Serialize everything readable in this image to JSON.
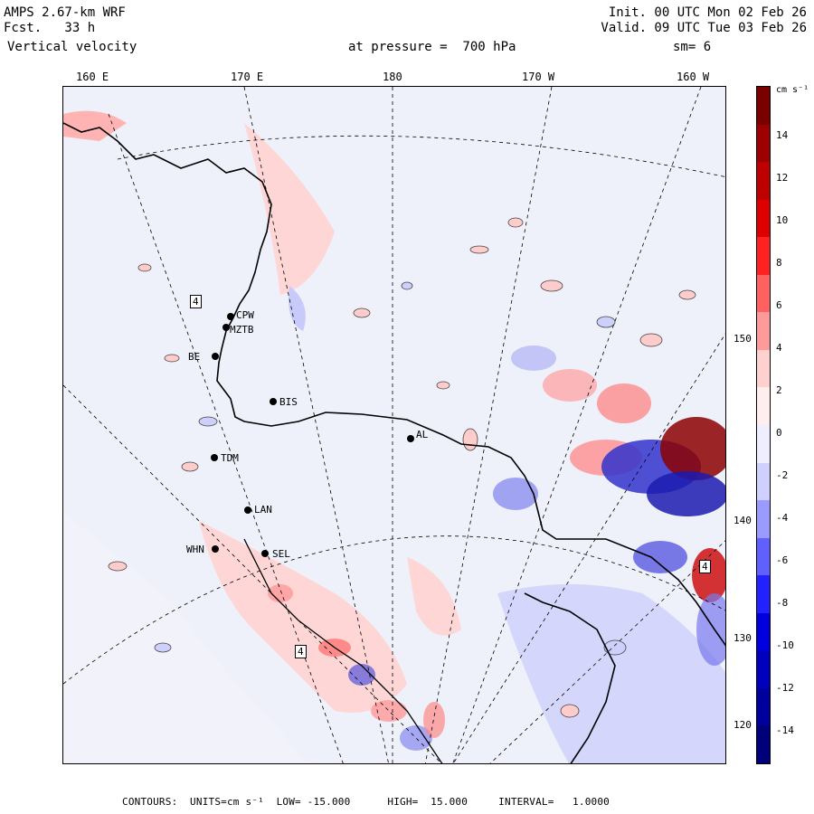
{
  "header": {
    "line1_left": "AMPS 2.67-km WRF",
    "line2_left": "Fcst.   33 h",
    "line3_left": "Vertical velocity",
    "line1_right": "Init. 00 UTC Mon 02 Feb 26",
    "line2_right": "Valid. 09 UTC Tue 03 Feb 26",
    "pressure": "at pressure =  700 hPa",
    "smoothing": "sm= 6"
  },
  "longitudes": [
    "160 E",
    "170 E",
    "180",
    "170 W",
    "160 W"
  ],
  "latitudes": [
    "150 W",
    "140 W",
    "130 W",
    "120 W"
  ],
  "stations": [
    {
      "code": "CPW"
    },
    {
      "code": "MZTB"
    },
    {
      "code": "BE"
    },
    {
      "code": "BIS"
    },
    {
      "code": "TDM"
    },
    {
      "code": "LAN"
    },
    {
      "code": "WHN"
    },
    {
      "code": "SEL"
    },
    {
      "code": "AL"
    }
  ],
  "markers": [
    {
      "text": "4"
    },
    {
      "text": "4"
    },
    {
      "text": "4"
    }
  ],
  "colorbar": {
    "units": "cm s⁻¹",
    "ticks": [
      "14",
      "12",
      "10",
      "8",
      "6",
      "4",
      "2",
      "0",
      "-2",
      "-4",
      "-6",
      "-8",
      "-10",
      "-12",
      "-14"
    ],
    "colors": [
      "#7a0000",
      "#9c0000",
      "#bd0000",
      "#de0000",
      "#ff2222",
      "#ff6060",
      "#ff9a9a",
      "#ffd0d0",
      "#ffeeee",
      "#eeeeff",
      "#d0d0ff",
      "#9a9aff",
      "#6060ff",
      "#2222ff",
      "#0000de",
      "#0000bd",
      "#00009c",
      "#00007a"
    ]
  },
  "footer": "CONTOURS:  UNITS=cm s⁻¹  LOW= -15.000      HIGH=  15.000     INTERVAL=   1.0000"
}
